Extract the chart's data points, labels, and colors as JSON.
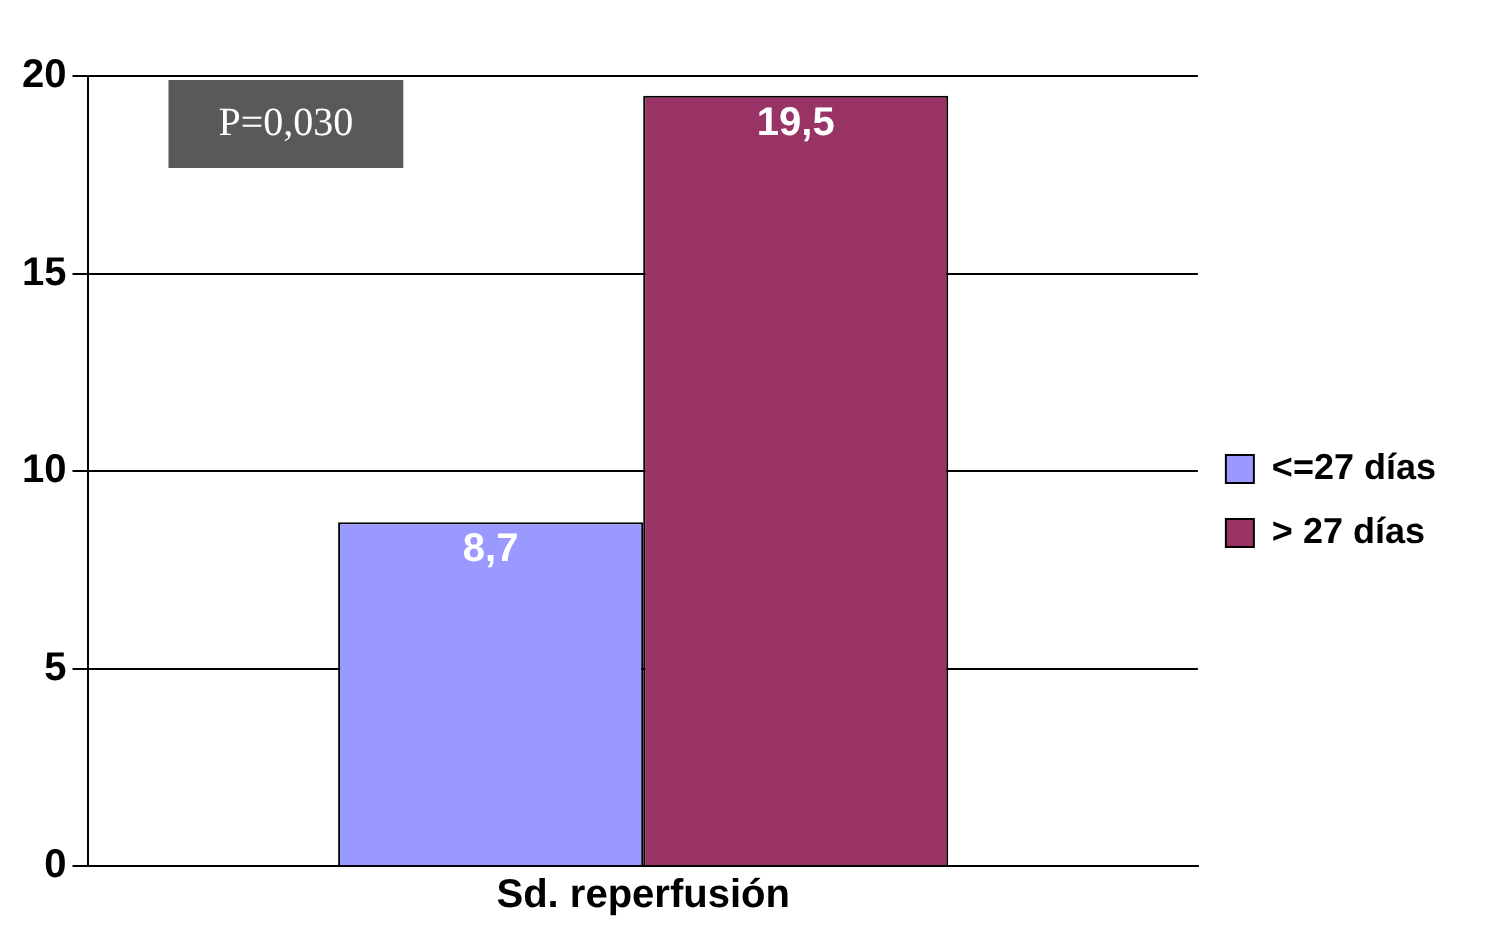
{
  "chart_data": {
    "type": "bar",
    "xlabel": null,
    "categories": [
      "Sd. reperfusión"
    ],
    "series": [
      {
        "name": "<=27 días",
        "color": "#9999ff",
        "values": [
          8.7
        ],
        "value_labels": [
          "8,7"
        ]
      },
      {
        "name": "> 27 días",
        "color": "#993366",
        "values": [
          19.5
        ],
        "value_labels": [
          "19,5"
        ]
      }
    ],
    "ylim": [
      0,
      20
    ],
    "yticks": [
      0,
      5,
      10,
      15,
      20
    ],
    "grid": "y",
    "legend": "right",
    "annotations": [
      "P=0,030"
    ]
  }
}
